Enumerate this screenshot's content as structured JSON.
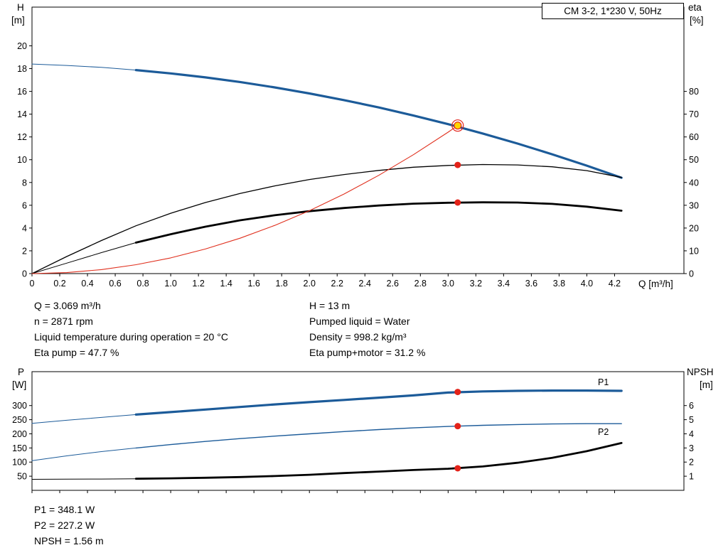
{
  "title_box": "CM 3-2, 1*230 V, 50Hz",
  "colors": {
    "curve_blue": "#1c5b99",
    "curve_red": "#e0301e",
    "curve_black": "#000000",
    "marker_red": "#e32219",
    "marker_yellow": "#ffd500"
  },
  "info_top": {
    "left": [
      "Q = 3.069 m³/h",
      "n = 2871 rpm",
      "Liquid temperature during operation = 20 °C",
      "Eta pump = 47.7 %"
    ],
    "right": [
      "H = 13 m",
      "Pumped liquid = Water",
      "Density = 998.2 kg/m³",
      "Eta pump+motor = 31.2 %"
    ]
  },
  "info_bottom": [
    "P1 = 348.1 W",
    "P2 = 227.2 W",
    "NPSH = 1.56 m"
  ],
  "chart_data": [
    {
      "id": "qh-eta-chart",
      "type": "line",
      "title": "CM 3-2, 1*230 V, 50Hz",
      "x_axis": {
        "label": "Q [m³/h]",
        "min": 0,
        "max": 4.7,
        "ticks": [
          "0",
          "0.2",
          "0.4",
          "0.6",
          "0.8",
          "1.0",
          "1.2",
          "1.4",
          "1.6",
          "1.8",
          "2.0",
          "2.2",
          "2.4",
          "2.6",
          "2.8",
          "3.0",
          "3.2",
          "3.4",
          "3.6",
          "3.8",
          "4.0",
          "4.2"
        ]
      },
      "y_left": {
        "label": "H",
        "unit": "[m]",
        "min": 0,
        "max": 23.4,
        "ticks": [
          "0",
          "2",
          "4",
          "6",
          "8",
          "10",
          "12",
          "14",
          "16",
          "18",
          "20"
        ]
      },
      "y_right": {
        "label": "eta",
        "unit": "[%]",
        "min": 0,
        "max": 117,
        "ticks": [
          "0",
          "10",
          "20",
          "30",
          "40",
          "50",
          "60",
          "70",
          "80"
        ]
      },
      "series": [
        {
          "name": "qh-curve",
          "axis": "left",
          "color": "#1c5b99",
          "thick": 3.2,
          "thin": 1,
          "thin_until": 0.75,
          "points": [
            [
              0,
              18.4
            ],
            [
              0.25,
              18.28
            ],
            [
              0.5,
              18.11
            ],
            [
              0.75,
              17.87
            ],
            [
              1,
              17.58
            ],
            [
              1.25,
              17.23
            ],
            [
              1.5,
              16.82
            ],
            [
              1.75,
              16.35
            ],
            [
              2,
              15.82
            ],
            [
              2.25,
              15.23
            ],
            [
              2.5,
              14.59
            ],
            [
              2.75,
              13.88
            ],
            [
              3,
              13.12
            ],
            [
              3.25,
              12.3
            ],
            [
              3.5,
              11.42
            ],
            [
              3.75,
              10.48
            ],
            [
              4,
              9.48
            ],
            [
              4.25,
              8.42
            ]
          ]
        },
        {
          "name": "eta-pump-curve",
          "axis": "right",
          "color": "#000000",
          "thick": 1.3,
          "thin": 1,
          "thin_until": 0,
          "points": [
            [
              0,
              0
            ],
            [
              0.25,
              7.5
            ],
            [
              0.5,
              14.5
            ],
            [
              0.75,
              21
            ],
            [
              1,
              26.5
            ],
            [
              1.25,
              31.2
            ],
            [
              1.5,
              35.2
            ],
            [
              1.75,
              38.5
            ],
            [
              2,
              41.3
            ],
            [
              2.25,
              43.5
            ],
            [
              2.5,
              45.3
            ],
            [
              2.75,
              46.7
            ],
            [
              3,
              47.5
            ],
            [
              3.25,
              47.9
            ],
            [
              3.5,
              47.7
            ],
            [
              3.75,
              46.9
            ],
            [
              4,
              45.2
            ],
            [
              4.25,
              42.2
            ]
          ]
        },
        {
          "name": "eta-pump-motor-curve",
          "axis": "right",
          "color": "#000000",
          "thick": 2.8,
          "thin": 1,
          "thin_until": 0.75,
          "points": [
            [
              0,
              0
            ],
            [
              0.25,
              4.6
            ],
            [
              0.5,
              9.2
            ],
            [
              0.75,
              13.6
            ],
            [
              1,
              17.3
            ],
            [
              1.25,
              20.6
            ],
            [
              1.5,
              23.4
            ],
            [
              1.75,
              25.6
            ],
            [
              2,
              27.4
            ],
            [
              2.25,
              28.8
            ],
            [
              2.5,
              29.9
            ],
            [
              2.75,
              30.7
            ],
            [
              3,
              31.1
            ],
            [
              3.25,
              31.3
            ],
            [
              3.5,
              31.2
            ],
            [
              3.75,
              30.6
            ],
            [
              4,
              29.4
            ],
            [
              4.25,
              27.6
            ]
          ]
        },
        {
          "name": "system-curve",
          "axis": "left",
          "color": "#e0301e",
          "thick": 1.1,
          "thin": 1,
          "thin_until": 0,
          "points": [
            [
              0,
              0
            ],
            [
              0.25,
              0.09
            ],
            [
              0.5,
              0.35
            ],
            [
              0.75,
              0.78
            ],
            [
              1,
              1.38
            ],
            [
              1.25,
              2.16
            ],
            [
              1.5,
              3.11
            ],
            [
              1.75,
              4.23
            ],
            [
              2,
              5.52
            ],
            [
              2.25,
              6.99
            ],
            [
              2.5,
              8.63
            ],
            [
              2.75,
              10.44
            ],
            [
              3,
              12.42
            ],
            [
              3.069,
              13
            ]
          ]
        }
      ],
      "annotations": [],
      "markers": [
        {
          "name": "duty-point",
          "style": "duty",
          "x": 3.069,
          "value": 13,
          "axis": "left"
        },
        {
          "name": "eta-pump-point",
          "style": "dot",
          "x": 3.069,
          "value": 47.7,
          "axis": "right"
        },
        {
          "name": "eta-pump-motor-point",
          "style": "dot",
          "x": 3.069,
          "value": 31.2,
          "axis": "right"
        }
      ]
    },
    {
      "id": "power-npsh-chart",
      "type": "line",
      "x_axis": {
        "label": "",
        "min": 0,
        "max": 4.7,
        "ticks": [
          "0",
          "0.2",
          "0.4",
          "0.6",
          "0.8",
          "1.0",
          "1.2",
          "1.4",
          "1.6",
          "1.8",
          "2.0",
          "2.2",
          "2.4",
          "2.6",
          "2.8",
          "3.0",
          "3.2",
          "3.4",
          "3.6",
          "3.8",
          "4.0",
          "4.2"
        ]
      },
      "y_left": {
        "label": "P",
        "unit": "[W]",
        "min": 0,
        "max": 420,
        "ticks": [
          "50",
          "100",
          "150",
          "200",
          "250",
          "300"
        ]
      },
      "y_right": {
        "label": "NPSH",
        "unit": "[m]",
        "min": 0,
        "max": 8.4,
        "ticks": [
          "1",
          "2",
          "3",
          "4",
          "5",
          "6"
        ]
      },
      "series": [
        {
          "name": "p1-curve",
          "axis": "left",
          "color": "#1c5b99",
          "thick": 3.2,
          "thin": 1,
          "thin_until": 0.75,
          "points": [
            [
              0,
              237
            ],
            [
              0.25,
              248
            ],
            [
              0.5,
              258
            ],
            [
              0.75,
              268
            ],
            [
              1,
              277
            ],
            [
              1.25,
              286
            ],
            [
              1.5,
              295
            ],
            [
              1.75,
              304
            ],
            [
              2,
              312
            ],
            [
              2.25,
              320
            ],
            [
              2.5,
              328
            ],
            [
              2.75,
              336
            ],
            [
              3,
              346
            ],
            [
              3.25,
              350
            ],
            [
              3.5,
              352
            ],
            [
              3.75,
              353
            ],
            [
              4,
              353
            ],
            [
              4.25,
              352
            ]
          ]
        },
        {
          "name": "p2-curve",
          "axis": "left",
          "color": "#1c5b99",
          "thick": 1.4,
          "thin": 1,
          "thin_until": 0.75,
          "points": [
            [
              0,
              105
            ],
            [
              0.25,
              122
            ],
            [
              0.5,
              137
            ],
            [
              0.75,
              150
            ],
            [
              1,
              162
            ],
            [
              1.25,
              173
            ],
            [
              1.5,
              183
            ],
            [
              1.75,
              192
            ],
            [
              2,
              200
            ],
            [
              2.25,
              208
            ],
            [
              2.5,
              215
            ],
            [
              2.75,
              221
            ],
            [
              3,
              226
            ],
            [
              3.25,
              230
            ],
            [
              3.5,
              233
            ],
            [
              3.75,
              235
            ],
            [
              4,
              236
            ],
            [
              4.25,
              236
            ]
          ]
        },
        {
          "name": "npsh-curve",
          "axis": "right",
          "color": "#000000",
          "thick": 2.8,
          "thin": 1,
          "thin_until": 0.75,
          "points": [
            [
              0,
              0.78
            ],
            [
              0.25,
              0.79
            ],
            [
              0.5,
              0.8
            ],
            [
              0.75,
              0.82
            ],
            [
              1,
              0.85
            ],
            [
              1.25,
              0.89
            ],
            [
              1.5,
              0.94
            ],
            [
              1.75,
              1.01
            ],
            [
              2,
              1.1
            ],
            [
              2.25,
              1.22
            ],
            [
              2.5,
              1.33
            ],
            [
              2.75,
              1.44
            ],
            [
              3,
              1.53
            ],
            [
              3.25,
              1.69
            ],
            [
              3.5,
              1.95
            ],
            [
              3.75,
              2.3
            ],
            [
              4,
              2.77
            ],
            [
              4.25,
              3.35
            ]
          ]
        }
      ],
      "annotations": [
        {
          "name": "p1-label",
          "text": "P1",
          "x": 4.08,
          "value": 372,
          "axis": "left",
          "color": "#1c5b99"
        },
        {
          "name": "p2-label",
          "text": "P2",
          "x": 4.08,
          "value": 196,
          "axis": "left",
          "color": "#1c5b99"
        }
      ],
      "markers": [
        {
          "name": "p1-point",
          "style": "dot",
          "x": 3.069,
          "value": 348.1,
          "axis": "left"
        },
        {
          "name": "p2-point",
          "style": "dot",
          "x": 3.069,
          "value": 227.2,
          "axis": "left"
        },
        {
          "name": "npsh-point",
          "style": "dot",
          "x": 3.069,
          "value": 1.56,
          "axis": "right"
        }
      ]
    }
  ]
}
